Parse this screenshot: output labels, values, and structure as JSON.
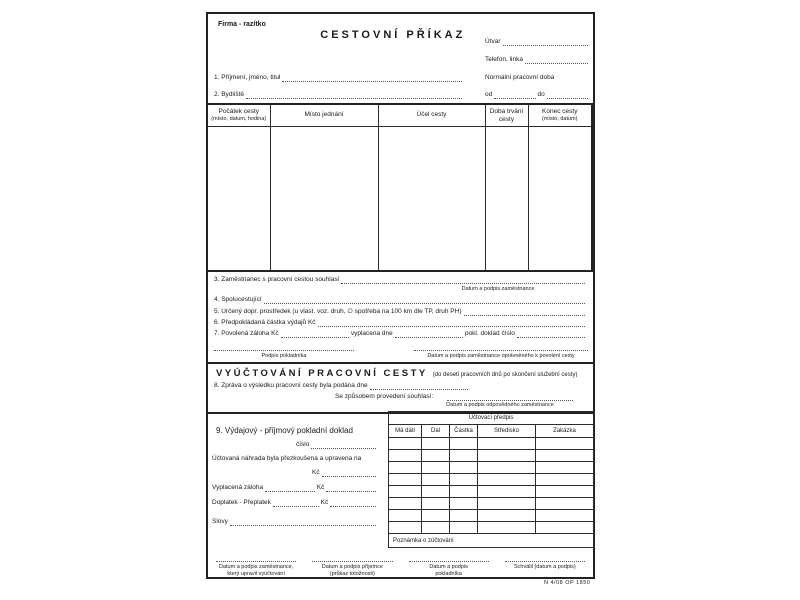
{
  "page": {
    "form_code": "N 4/08   OP 1850"
  },
  "header": {
    "stamp_label": "Firma - razítko",
    "title": "CESTOVNÍ PŘÍKAZ",
    "unit_label": "Útvar",
    "phone_label": "Telefon, linka",
    "working_hours_label": "Normální pracovní doba",
    "from_label": "od",
    "to_label": "do",
    "name_label": "1. Příjmení, jméno, titul",
    "address_label": "2. Bydliště"
  },
  "trip_table": {
    "columns": [
      {
        "title": "Počátek cesty",
        "subtitle": "(místo, datum, hodina)"
      },
      {
        "title": "Místo jednání",
        "subtitle": ""
      },
      {
        "title": "Účel cesty",
        "subtitle": ""
      },
      {
        "title": "Doba trvání",
        "subtitle": "cesty"
      },
      {
        "title": "Konec cesty",
        "subtitle": "(místo, datum)"
      }
    ]
  },
  "items": {
    "item3": "3. Zaměstnanec s pracovní cestou souhlasí",
    "item3_note": "Datum a podpis zaměstnance",
    "item4": "4. Spolucestující",
    "item5": "5. Určený dopr. prostředek (u vlast. voz. druh, ∅ spotřeba na 100 km dle TP, druh PH)",
    "item6": "6. Předpokládaná částka výdajů Kč",
    "item7_a": "7. Povolená záloha Kč",
    "item7_b": "vyplacena dne",
    "item7_c": "pokl. doklad číslo",
    "sig_left": "Podpis pokladníka",
    "sig_right": "Datum a podpis zaměstnance oprávněného k povolení cesty"
  },
  "settlement": {
    "title": "VYÚČTOVÁNÍ PRACOVNÍ CESTY",
    "subtitle": "(do deseti pracovních dnů po skončení služební cesty)",
    "item8": "8. Zpráva o výsledku pracovní cesty byla podána dne",
    "approval_label": "Se způsobem provedení souhlasí:",
    "approval_note": "Datum a podpis odpovědného zaměstnance"
  },
  "voucher": {
    "item9": "9. Výdajový - příjmový pokladní doklad",
    "number_label": "číslo",
    "reviewed_label": "Účtovaná náhrada byla přezkoušena a upravena na",
    "kc_label": "Kč",
    "paid_advance_label": "Vyplacená záloha",
    "surcharge_label": "Doplatek - Přeplatek",
    "words_label": "Slovy"
  },
  "account_table": {
    "title": "Účtovací předpis",
    "columns": [
      "Má dáti",
      "Dal",
      "Částka",
      "Středisko",
      "Zakázka"
    ],
    "rows": 8,
    "note_label": "Poznámka o zúčtování"
  },
  "signatures": [
    {
      "line1": "Datum a podpis zaměstnance,",
      "line2": "který upravil vyúčtování"
    },
    {
      "line1": "Datum a podpis příjemce",
      "line2": "(průkaz totožnosti)"
    },
    {
      "line1": "Datum a podpis",
      "line2": "pokladníka"
    },
    {
      "line1": "Schválil (datum a podpis)",
      "line2": ""
    }
  ]
}
